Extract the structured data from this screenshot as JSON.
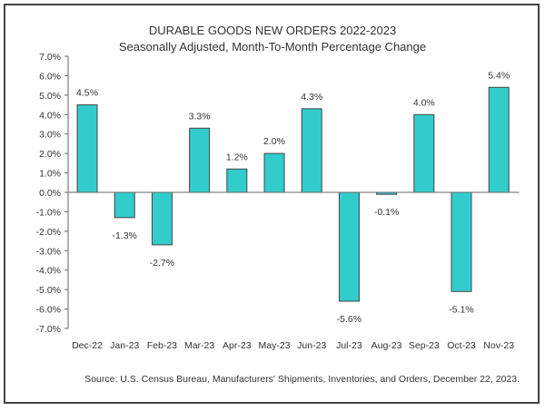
{
  "chart_data": {
    "type": "bar",
    "title": "DURABLE GOODS NEW ORDERS 2022-2023",
    "subtitle": "Seasonally Adjusted,  Month-To-Month Percentage Change",
    "categories": [
      "Dec-22",
      "Jan-23",
      "Feb-23",
      "Mar-23",
      "Apr-23",
      "May-23",
      "Jun-23",
      "Jul-23",
      "Aug-23",
      "Sep-23",
      "Oct-23",
      "Nov-23"
    ],
    "values": [
      4.5,
      -1.3,
      -2.7,
      3.3,
      1.2,
      2.0,
      4.3,
      -5.6,
      -0.1,
      4.0,
      -5.1,
      5.4
    ],
    "data_labels": [
      "4.5%",
      "-1.3%",
      "-2.7%",
      "3.3%",
      "1.2%",
      "2.0%",
      "4.3%",
      "-5.6%",
      "-0.1%",
      "4.0%",
      "-5.1%",
      "5.4%"
    ],
    "yticks": [
      7,
      6,
      5,
      4,
      3,
      2,
      1,
      0,
      -1,
      -2,
      -3,
      -4,
      -5,
      -6,
      -7
    ],
    "ytick_labels": [
      "7.0%",
      "6.0%",
      "5.0%",
      "4.0%",
      "3.0%",
      "2.0%",
      "1.0%",
      "0.0%",
      "-1.0%",
      "-2.0%",
      "-3.0%",
      "-4.0%",
      "-5.0%",
      "-6.0%",
      "-7.0%"
    ],
    "ylim": [
      -7,
      7
    ],
    "xlabel": "",
    "ylabel": "",
    "grid": false,
    "bar_color": "#33CCCC",
    "source": "Source: U.S. Census Bureau, Manufacturers' Shipments, Inventories, and Orders, December 22, 2023."
  }
}
